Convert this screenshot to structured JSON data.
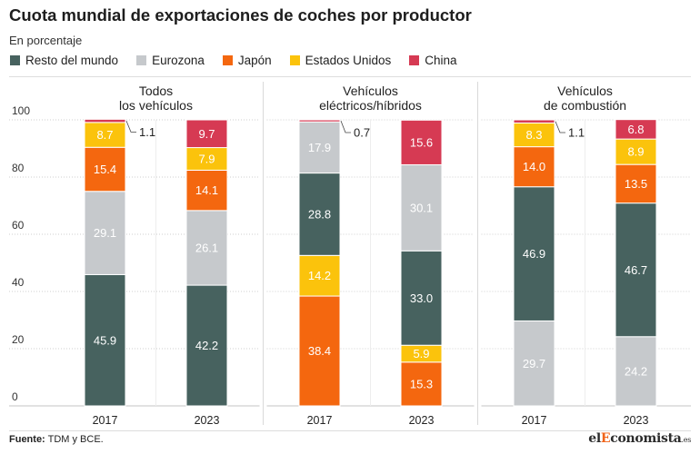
{
  "title": "Cuota mundial de exportaciones de coches por productor",
  "subtitle": "En porcentaje",
  "legend": [
    {
      "name": "Resto del mundo",
      "color": "#47625f"
    },
    {
      "name": "Eurozona",
      "color": "#c6c9cc"
    },
    {
      "name": "Japón",
      "color": "#f4670f"
    },
    {
      "name": "Estados Unidos",
      "color": "#fbc30c"
    },
    {
      "name": "China",
      "color": "#d63a53"
    }
  ],
  "chart_data": [
    {
      "type": "bar",
      "stacked": true,
      "title_lines": [
        "Todos",
        "los vehículos"
      ],
      "categories": [
        "2017",
        "2023"
      ],
      "ylim": [
        0,
        100
      ],
      "yticks": [
        0,
        20,
        40,
        60,
        80,
        100
      ],
      "series": [
        {
          "name": "Resto del mundo",
          "values": [
            45.9,
            42.2
          ]
        },
        {
          "name": "Eurozona",
          "values": [
            29.1,
            26.1
          ]
        },
        {
          "name": "Japón",
          "values": [
            15.4,
            14.1
          ]
        },
        {
          "name": "Estados Unidos",
          "values": [
            8.7,
            7.9
          ]
        },
        {
          "name": "China",
          "values": [
            1.1,
            9.7
          ]
        }
      ]
    },
    {
      "type": "bar",
      "stacked": true,
      "title_lines": [
        "Vehículos",
        "eléctricos/híbridos"
      ],
      "categories": [
        "2017",
        "2023"
      ],
      "ylim": [
        0,
        100
      ],
      "yticks": [
        0,
        20,
        40,
        60,
        80,
        100
      ],
      "series": [
        {
          "name": "Japón",
          "values": [
            38.4,
            15.3
          ]
        },
        {
          "name": "Estados Unidos",
          "values": [
            14.2,
            5.9
          ]
        },
        {
          "name": "Resto del mundo",
          "values": [
            28.8,
            33.0
          ]
        },
        {
          "name": "Eurozona",
          "values": [
            17.9,
            30.1
          ]
        },
        {
          "name": "China",
          "values": [
            0.7,
            15.6
          ]
        }
      ]
    },
    {
      "type": "bar",
      "stacked": true,
      "title_lines": [
        "Vehículos",
        "de combustión"
      ],
      "categories": [
        "2017",
        "2023"
      ],
      "ylim": [
        0,
        100
      ],
      "yticks": [
        0,
        20,
        40,
        60,
        80,
        100
      ],
      "series": [
        {
          "name": "Eurozona",
          "values": [
            29.7,
            24.2
          ]
        },
        {
          "name": "Resto del mundo",
          "values": [
            46.9,
            46.7
          ]
        },
        {
          "name": "Japón",
          "values": [
            14.0,
            13.5
          ]
        },
        {
          "name": "Estados Unidos",
          "values": [
            8.3,
            8.9
          ]
        },
        {
          "name": "China",
          "values": [
            1.1,
            6.8
          ]
        }
      ]
    }
  ],
  "footer": {
    "source_label": "Fuente:",
    "source_text": "TDM y BCE."
  },
  "logo": {
    "prefix": "el",
    "initial": "E",
    "rest": "conomista",
    "tld": ".es"
  }
}
